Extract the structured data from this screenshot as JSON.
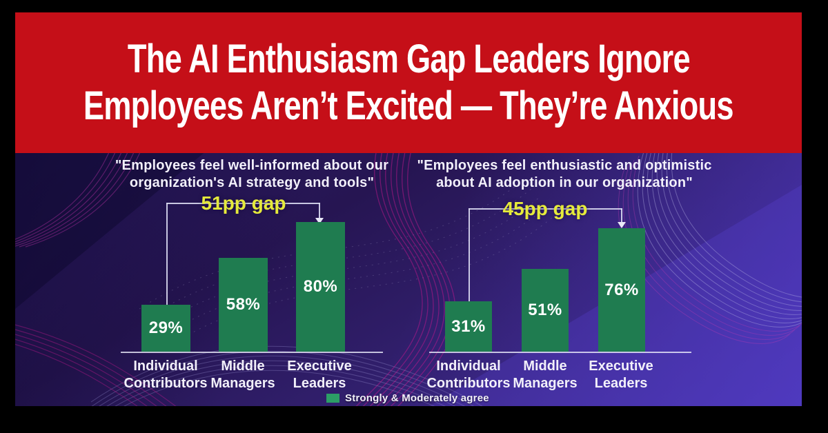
{
  "banner": {
    "line1": "The AI Enthusiasm Gap Leaders Ignore",
    "line2": "Employees Aren’t Excited — They’re Anxious"
  },
  "legend": {
    "label": "Strongly & Moderately agree"
  },
  "colors": {
    "banner_red": "#c50f18",
    "bar_green": "#1f7c50",
    "legend_green": "#2c9e66",
    "gap_yellow": "#e5ea3b",
    "background_purple": "#2b1a63",
    "bracket_line": "#dcdcf2",
    "wave_magenta": "#c2188e",
    "frame_black": "#000000",
    "text_white": "#ffffff"
  },
  "chart_data": [
    {
      "type": "bar",
      "title_lines": [
        "\"Employees feel well-informed about our",
        "organization's AI strategy and tools\""
      ],
      "categories": [
        [
          "Individual",
          "Contributors"
        ],
        [
          "Middle",
          "Managers"
        ],
        [
          "Executive",
          "Leaders"
        ]
      ],
      "values": [
        29,
        58,
        80
      ],
      "unit": "%",
      "gap_annotation": "51pp gap",
      "gap_value_pp": 51,
      "bar_color": "#1f7c50",
      "legend": "Strongly & Moderately agree",
      "ylim": [
        0,
        100
      ],
      "grid": false,
      "legend_position": "bottom-center"
    },
    {
      "type": "bar",
      "title_lines": [
        "\"Employees feel enthusiastic and optimistic",
        "about AI adoption in our organization\""
      ],
      "categories": [
        [
          "Individual",
          "Contributors"
        ],
        [
          "Middle",
          "Managers"
        ],
        [
          "Executive",
          "Leaders"
        ]
      ],
      "values": [
        31,
        51,
        76
      ],
      "unit": "%",
      "gap_annotation": "45pp gap",
      "gap_value_pp": 45,
      "bar_color": "#1f7c50",
      "legend": "Strongly & Moderately agree",
      "ylim": [
        0,
        100
      ],
      "grid": false,
      "legend_position": "bottom-center"
    }
  ]
}
